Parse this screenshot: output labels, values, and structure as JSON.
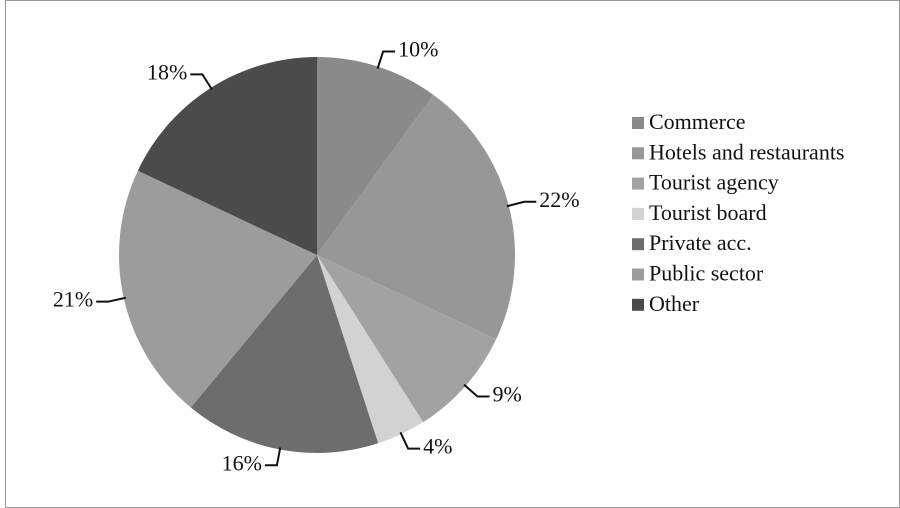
{
  "chart_data": {
    "type": "pie",
    "categories": [
      "Commerce",
      "Hotels and restaurants",
      "Tourist agency",
      "Tourist board",
      "Private acc.",
      "Public sector",
      "Other"
    ],
    "values": [
      10,
      22,
      9,
      4,
      16,
      21,
      18
    ],
    "value_labels": [
      "10%",
      "22%",
      "9%",
      "4%",
      "16%",
      "21%",
      "18%"
    ],
    "colors": [
      "#8a8a8a",
      "#979797",
      "#a2a2a2",
      "#d2d2d2",
      "#6d6d6d",
      "#9c9c9c",
      "#4b4b4b"
    ],
    "legend": "right"
  }
}
